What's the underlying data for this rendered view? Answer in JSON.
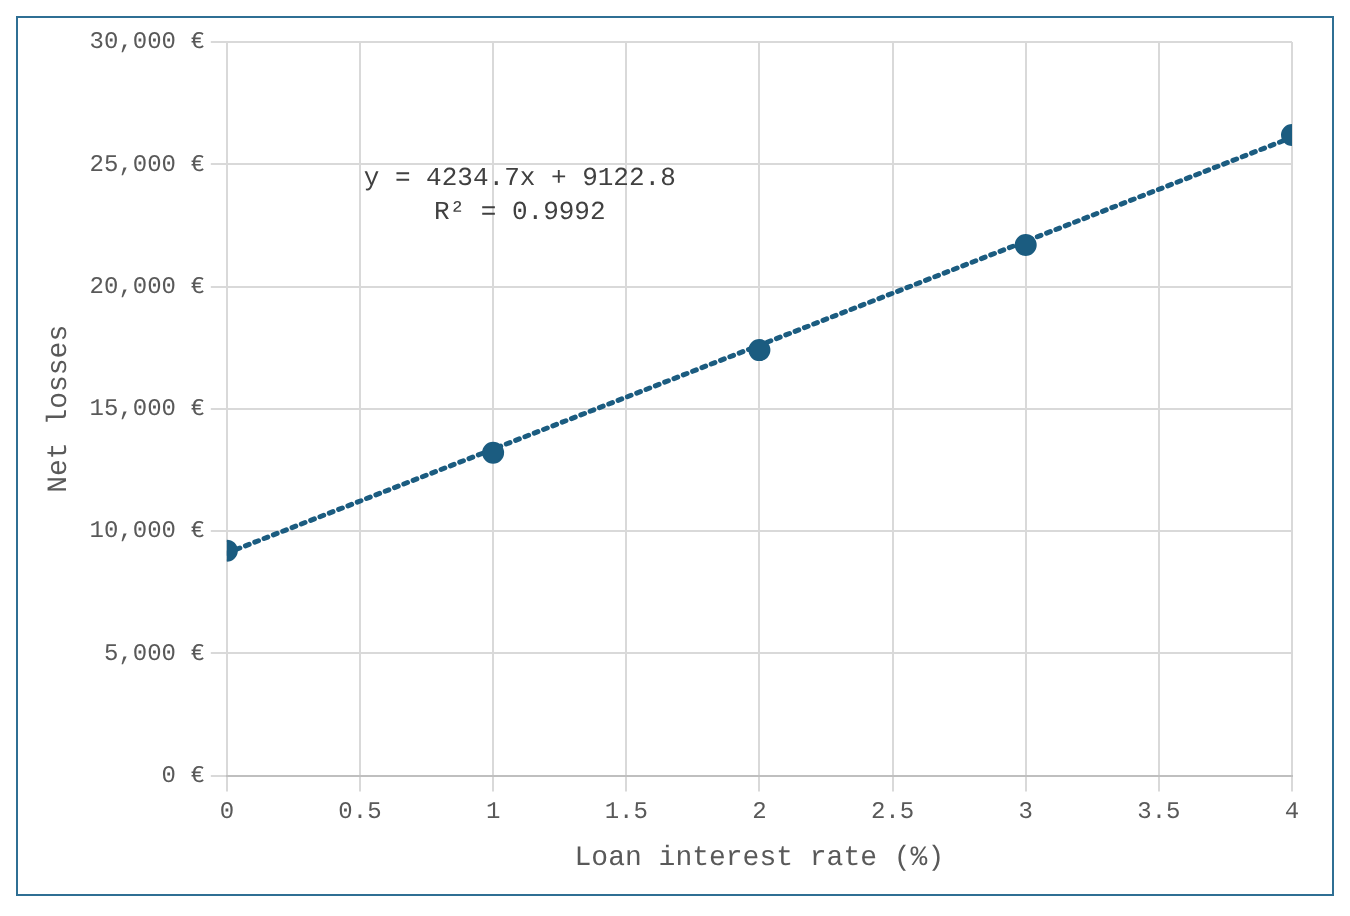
{
  "chart_data": {
    "type": "scatter",
    "xlabel": "Loan interest rate (%)",
    "ylabel": "Net losses",
    "x": [
      0,
      1,
      2,
      3,
      4
    ],
    "series": [
      {
        "color": "#1b5c80",
        "values": [
          9200,
          13200,
          17400,
          21700,
          26200
        ],
        "marker": "circle"
      },
      {
        "type": "line",
        "color": "#1b5c80",
        "x": [
          0,
          4
        ],
        "values": [
          9100,
          26100
        ],
        "marker": "none",
        "line_style": "dotted"
      }
    ],
    "annotations": [
      "y = 4234.7x + 9122.8",
      "R² = 0.9992"
    ],
    "xlim": [
      0,
      4
    ],
    "xticks": [
      0,
      0.5,
      1,
      1.5,
      2,
      2.5,
      3,
      3.5,
      4
    ],
    "ylim": [
      0,
      30000
    ],
    "yticks": [
      {
        "value": 0,
        "label": "0 €"
      },
      {
        "value": 5000,
        "label": "5,000 €"
      },
      {
        "value": 10000,
        "label": "10,000 €"
      },
      {
        "value": 15000,
        "label": "15,000 €"
      },
      {
        "value": 20000,
        "label": "20,000 €"
      },
      {
        "value": 25000,
        "label": "25,000 €"
      },
      {
        "value": 30000,
        "label": "30,000 €"
      }
    ],
    "grid": true,
    "legend": false
  }
}
